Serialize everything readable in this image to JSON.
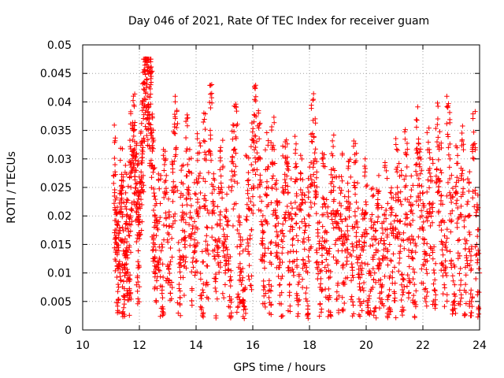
{
  "chart_data": {
    "type": "scatter",
    "title": "Day 046 of 2021, Rate Of TEC Index for receiver guam",
    "xlabel": "GPS time / hours",
    "ylabel": "ROTI / TECUs",
    "xlim": [
      10,
      24
    ],
    "ylim": [
      0,
      0.05
    ],
    "x_ticks": [
      10,
      12,
      14,
      16,
      18,
      20,
      22,
      24
    ],
    "x_tick_labels": [
      "10",
      "12",
      "14",
      "16",
      "18",
      "20",
      "22",
      "24"
    ],
    "y_ticks": [
      0,
      0.005,
      0.01,
      0.015,
      0.02,
      0.025,
      0.03,
      0.035,
      0.04,
      0.045,
      0.05
    ],
    "y_tick_labels": [
      "0",
      "0.005",
      "0.01",
      "0.015",
      "0.02",
      "0.025",
      "0.03",
      "0.035",
      "0.04",
      "0.045",
      "0.05"
    ],
    "grid": true,
    "marker": "plus",
    "marker_color": "#ff0000",
    "series": [
      {
        "values_xy": [
          [
            11.1,
            0.027
          ],
          [
            11.15,
            0.021
          ],
          [
            11.2,
            0.015
          ],
          [
            11.25,
            0.008
          ],
          [
            11.3,
            0.012
          ],
          [
            11.35,
            0.024
          ],
          [
            11.4,
            0.018
          ],
          [
            11.45,
            0.006
          ],
          [
            11.5,
            0.01
          ],
          [
            11.55,
            0.02
          ],
          [
            11.6,
            0.014
          ],
          [
            11.65,
            0.009
          ],
          [
            11.7,
            0.025
          ],
          [
            11.75,
            0.03
          ],
          [
            11.8,
            0.034
          ],
          [
            11.85,
            0.028
          ],
          [
            11.9,
            0.022
          ],
          [
            11.95,
            0.012
          ],
          [
            12.0,
            0.016
          ],
          [
            12.05,
            0.026
          ],
          [
            12.1,
            0.033
          ],
          [
            12.15,
            0.039
          ],
          [
            12.2,
            0.047
          ],
          [
            12.25,
            0.044
          ],
          [
            12.3,
            0.041
          ],
          [
            12.35,
            0.037
          ],
          [
            12.4,
            0.043
          ],
          [
            12.45,
            0.032
          ],
          [
            12.5,
            0.021
          ],
          [
            12.55,
            0.015
          ],
          [
            12.6,
            0.011
          ],
          [
            12.7,
            0.019
          ],
          [
            12.8,
            0.007
          ],
          [
            12.9,
            0.024
          ],
          [
            13.0,
            0.017
          ],
          [
            13.1,
            0.012
          ],
          [
            13.2,
            0.026
          ],
          [
            13.3,
            0.032
          ],
          [
            13.4,
            0.008
          ],
          [
            13.5,
            0.02
          ],
          [
            13.6,
            0.015
          ],
          [
            13.7,
            0.029
          ],
          [
            13.8,
            0.023
          ],
          [
            13.9,
            0.011
          ],
          [
            14.0,
            0.018
          ],
          [
            14.1,
            0.027
          ],
          [
            14.2,
            0.006
          ],
          [
            14.3,
            0.03
          ],
          [
            14.4,
            0.014
          ],
          [
            14.5,
            0.035
          ],
          [
            14.6,
            0.021
          ],
          [
            14.7,
            0.009
          ],
          [
            14.8,
            0.016
          ],
          [
            14.9,
            0.025
          ],
          [
            15.0,
            0.013
          ],
          [
            15.1,
            0.019
          ],
          [
            15.2,
            0.004
          ],
          [
            15.3,
            0.027
          ],
          [
            15.4,
            0.031
          ],
          [
            15.5,
            0.011
          ],
          [
            15.6,
            0.008
          ],
          [
            15.7,
            0.002
          ],
          [
            15.8,
            0.022
          ],
          [
            15.9,
            0.016
          ],
          [
            16.0,
            0.028
          ],
          [
            16.1,
            0.034
          ],
          [
            16.2,
            0.03
          ],
          [
            16.3,
            0.019
          ],
          [
            16.4,
            0.012
          ],
          [
            16.5,
            0.026
          ],
          [
            16.6,
            0.007
          ],
          [
            16.7,
            0.029
          ],
          [
            16.8,
            0.021
          ],
          [
            16.9,
            0.015
          ],
          [
            17.0,
            0.009
          ],
          [
            17.1,
            0.024
          ],
          [
            17.2,
            0.027
          ],
          [
            17.3,
            0.012
          ],
          [
            17.4,
            0.018
          ],
          [
            17.5,
            0.026
          ],
          [
            17.6,
            0.008
          ],
          [
            17.7,
            0.022
          ],
          [
            17.8,
            0.016
          ],
          [
            17.9,
            0.011
          ],
          [
            18.0,
            0.02
          ],
          [
            18.1,
            0.033
          ],
          [
            18.2,
            0.03
          ],
          [
            18.3,
            0.017
          ],
          [
            18.4,
            0.009
          ],
          [
            18.5,
            0.023
          ],
          [
            18.6,
            0.014
          ],
          [
            18.7,
            0.006
          ],
          [
            18.8,
            0.026
          ],
          [
            18.9,
            0.019
          ],
          [
            19.0,
            0.012
          ],
          [
            19.1,
            0.024
          ],
          [
            19.2,
            0.008
          ],
          [
            19.3,
            0.016
          ],
          [
            19.4,
            0.021
          ],
          [
            19.5,
            0.011
          ],
          [
            19.6,
            0.025
          ],
          [
            19.7,
            0.018
          ],
          [
            19.8,
            0.007
          ],
          [
            19.9,
            0.014
          ],
          [
            20.0,
            0.022
          ],
          [
            20.1,
            0.003
          ],
          [
            20.2,
            0.016
          ],
          [
            20.3,
            0.01
          ],
          [
            20.4,
            0.019
          ],
          [
            20.5,
            0.008
          ],
          [
            20.6,
            0.013
          ],
          [
            20.7,
            0.021
          ],
          [
            20.8,
            0.006
          ],
          [
            20.9,
            0.017
          ],
          [
            21.0,
            0.011
          ],
          [
            21.1,
            0.025
          ],
          [
            21.2,
            0.019
          ],
          [
            21.3,
            0.009
          ],
          [
            21.4,
            0.027
          ],
          [
            21.5,
            0.014
          ],
          [
            21.6,
            0.021
          ],
          [
            21.7,
            0.008
          ],
          [
            21.8,
            0.031
          ],
          [
            21.9,
            0.024
          ],
          [
            22.0,
            0.016
          ],
          [
            22.1,
            0.012
          ],
          [
            22.2,
            0.028
          ],
          [
            22.3,
            0.022
          ],
          [
            22.4,
            0.007
          ],
          [
            22.5,
            0.033
          ],
          [
            22.6,
            0.026
          ],
          [
            22.7,
            0.015
          ],
          [
            22.8,
            0.01
          ],
          [
            22.9,
            0.032
          ],
          [
            23.0,
            0.019
          ],
          [
            23.1,
            0.005
          ],
          [
            23.2,
            0.024
          ],
          [
            23.3,
            0.013
          ],
          [
            23.4,
            0.028
          ],
          [
            23.5,
            0.011
          ],
          [
            23.6,
            0.02
          ],
          [
            23.7,
            0.007
          ],
          [
            23.8,
            0.03
          ],
          [
            23.9,
            0.015
          ],
          [
            24.0,
            0.01
          ]
        ]
      }
    ]
  }
}
